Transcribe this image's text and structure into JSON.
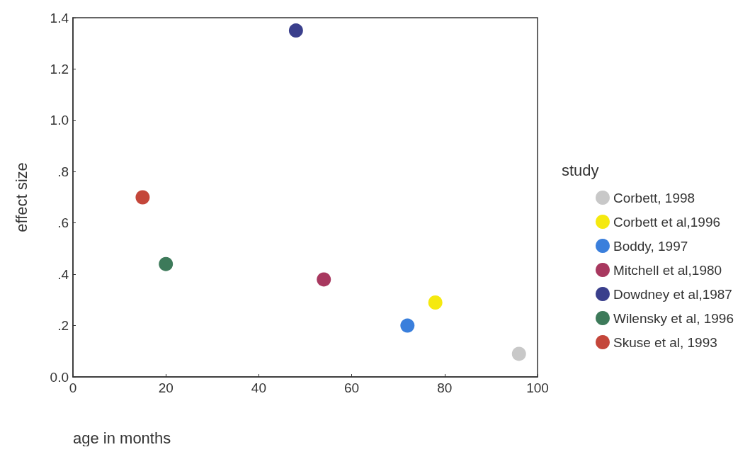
{
  "chart_data": {
    "type": "scatter",
    "xlabel": "age in months",
    "ylabel": "effect size",
    "legend_title": "study",
    "legend": "right",
    "marker": "circle",
    "grid": false,
    "xlim": [
      0,
      100
    ],
    "xticks": [
      0,
      20,
      40,
      60,
      80,
      100
    ],
    "ylim": [
      0,
      1.4
    ],
    "yticks": [
      {
        "value": 0,
        "label": "0.0"
      },
      {
        "value": 0.2,
        "label": ".2"
      },
      {
        "value": 0.4,
        "label": ".4"
      },
      {
        "value": 0.6,
        "label": ".6"
      },
      {
        "value": 0.8,
        "label": ".8"
      },
      {
        "value": 1.0,
        "label": "1.0"
      },
      {
        "value": 1.2,
        "label": "1.2"
      },
      {
        "value": 1.4,
        "label": "1.4"
      }
    ],
    "series": [
      {
        "name": "Corbett, 1998",
        "color": "#c8c8c8",
        "x": [
          96
        ],
        "values": [
          0.09
        ]
      },
      {
        "name": "Corbett et al,1996",
        "color": "#f5e90f",
        "x": [
          78
        ],
        "values": [
          0.29
        ]
      },
      {
        "name": "Boddy, 1997",
        "color": "#3a7fdc",
        "x": [
          72
        ],
        "values": [
          0.2
        ]
      },
      {
        "name": "Mitchell et al,1980",
        "color": "#a8385f",
        "x": [
          54
        ],
        "values": [
          0.38
        ]
      },
      {
        "name": "Dowdney et al,1987",
        "color": "#3a3f8c",
        "x": [
          48
        ],
        "values": [
          1.35
        ]
      },
      {
        "name": "Wilensky et al, 1996",
        "color": "#3d7a5a",
        "x": [
          20
        ],
        "values": [
          0.44
        ]
      },
      {
        "name": "Skuse et al, 1993",
        "color": "#c4463a",
        "x": [
          15
        ],
        "values": [
          0.7
        ]
      }
    ]
  }
}
